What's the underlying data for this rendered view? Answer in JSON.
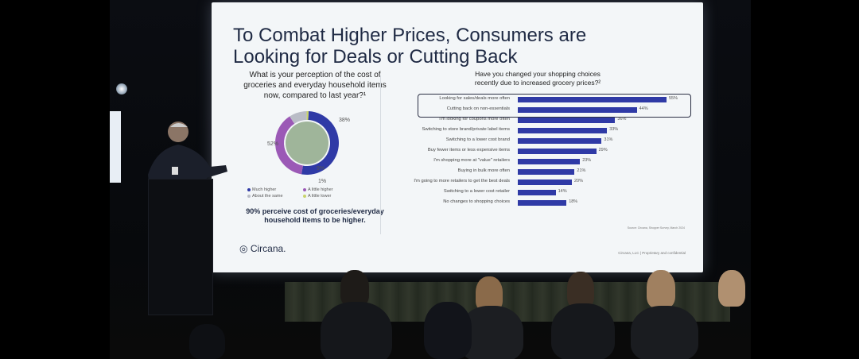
{
  "slide": {
    "title": "To Combat Higher Prices, Consumers are Looking for Deals or Cutting Back",
    "left_question": "What is your perception of the cost of groceries and everyday household items now, compared to last year?¹",
    "right_question": "Have you changed your shopping choices recently due to increased grocery prices?²",
    "pie": {
      "slices": [
        {
          "label": "Much higher",
          "value": 52,
          "display": "52%",
          "color": "#2f3aa6"
        },
        {
          "label": "A little higher",
          "value": 38,
          "display": "38%",
          "color": "#9b59b6"
        },
        {
          "label": "About the same",
          "value": 9,
          "display": "9%",
          "color": "#b9bcc6"
        },
        {
          "label": "A little lower",
          "value": 1,
          "display": "1%",
          "color": "#c8d36b"
        }
      ],
      "legend": [
        "Much higher",
        "A little higher",
        "About the same",
        "A little lower"
      ]
    },
    "stat_text": "90% perceive cost of groceries/everyday household items to be higher.",
    "bars": [
      {
        "label": "Looking for sales/deals more often",
        "value": 55,
        "display": "55%"
      },
      {
        "label": "Cutting back on non-essentials",
        "value": 44,
        "display": "44%"
      },
      {
        "label": "I'm looking for coupons more often",
        "value": 36,
        "display": "36%"
      },
      {
        "label": "Switching to store brand/private label items",
        "value": 33,
        "display": "33%"
      },
      {
        "label": "Switching to a lower cost brand",
        "value": 31,
        "display": "31%"
      },
      {
        "label": "Buy fewer items or less expensive items",
        "value": 29,
        "display": "29%"
      },
      {
        "label": "I'm shopping more at \"value\" retailers",
        "value": 23,
        "display": "23%"
      },
      {
        "label": "Buying in bulk more often",
        "value": 21,
        "display": "21%"
      },
      {
        "label": "I'm going to more retailers to get the best deals",
        "value": 20,
        "display": "20%"
      },
      {
        "label": "Switching to a lower cost retailer",
        "value": 14,
        "display": "14%"
      },
      {
        "label": "No changes to shopping choices",
        "value": 18,
        "display": "18%"
      }
    ],
    "brand": "Circana.",
    "source": "Source: Circana, Shopper Survey, March 2024",
    "footer": "Circana, LLC | Proprietary and confidential"
  },
  "colors": {
    "bar": "#2f3aa6",
    "title": "#1f2a44",
    "screen": "#f3f6f8"
  }
}
